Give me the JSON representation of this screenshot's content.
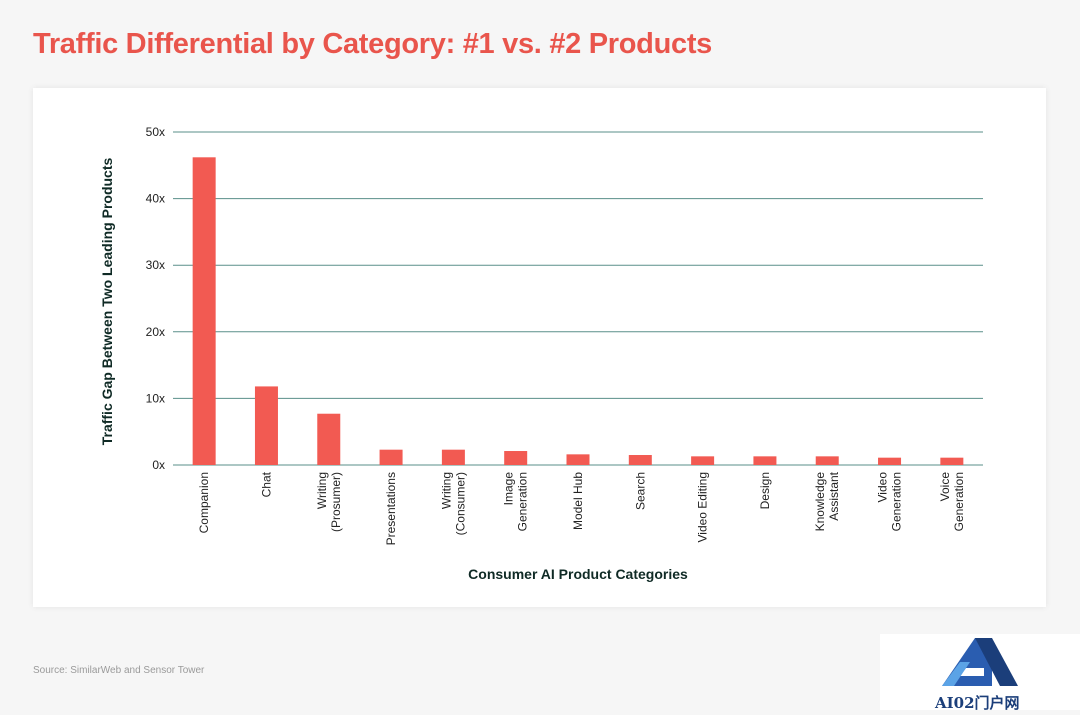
{
  "page": {
    "source": "Source: SimilarWeb and Sensor Tower",
    "watermark": "AI02门户网"
  },
  "colors": {
    "title": "#e9554c",
    "bar": "#f25a52",
    "grid": "#5a8f8a",
    "axis_text": "#222222",
    "label_text": "#0f2a25"
  },
  "chart_data": {
    "type": "bar",
    "title": "Traffic Differential by Category: #1 vs. #2 Products",
    "xlabel": "Consumer AI Product Categories",
    "ylabel": "Traffic Gap Between Two Leading Products",
    "ylim": [
      0,
      50
    ],
    "yticks": [
      0,
      10,
      20,
      30,
      40,
      50
    ],
    "ytick_labels": [
      "0x",
      "10x",
      "20x",
      "30x",
      "40x",
      "50x"
    ],
    "grid": true,
    "legend": "none",
    "categories": [
      [
        "Companion"
      ],
      [
        "Chat"
      ],
      [
        "Writing",
        "(Prosumer)"
      ],
      [
        "Presentations"
      ],
      [
        "Writing",
        "(Consumer)"
      ],
      [
        "Image",
        "Generation"
      ],
      [
        "Model Hub"
      ],
      [
        "Search"
      ],
      [
        "Video Editing"
      ],
      [
        "Design"
      ],
      [
        "Knowledge",
        "Assistant"
      ],
      [
        "Video",
        "Generation"
      ],
      [
        "Voice",
        "Generation"
      ]
    ],
    "values": [
      46.2,
      11.8,
      7.7,
      2.3,
      2.3,
      2.1,
      1.6,
      1.5,
      1.3,
      1.3,
      1.3,
      1.1,
      1.1
    ]
  }
}
